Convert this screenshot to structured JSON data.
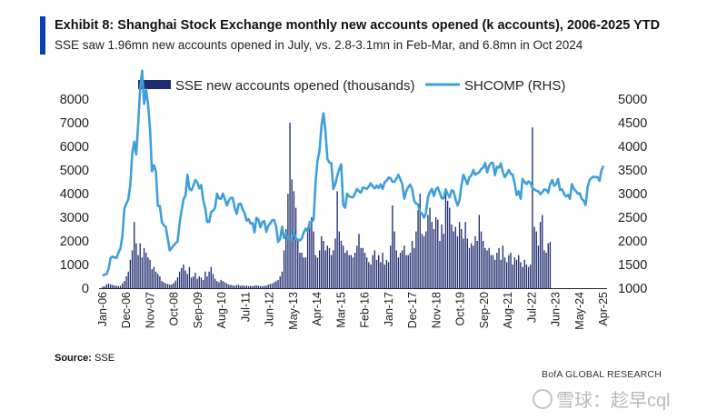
{
  "header": {
    "title": "Exhibit 8: Shanghai Stock Exchange monthly new accounts opened (k accounts), 2006-2025 YTD",
    "subtitle": "SSE saw 1.96mn new accounts opened in July, vs. 2.8-3.1mn in Feb-Mar, and 6.8mn in Oct 2024"
  },
  "footer": {
    "source_label": "Source:",
    "source_value": "SSE",
    "research": "BofA GLOBAL RESEARCH",
    "watermark": "雪球：趁早cql"
  },
  "colors": {
    "accent": "#0a3eb5",
    "bars": "#1f2c6e",
    "line": "#3f9fdb"
  },
  "chart_data": {
    "type": "bar",
    "title": "",
    "legend": [
      "SSE new accounts opened (thousands)",
      "SHCOMP (RHS)"
    ],
    "legend_position": "top",
    "grid": false,
    "x_start": "2006-01",
    "x_end": "2025-07",
    "x_ticks": [
      "Jan-06",
      "Dec-06",
      "Nov-07",
      "Oct-08",
      "Sep-09",
      "Aug-10",
      "Jul-11",
      "Jun-12",
      "May-13",
      "Apr-14",
      "Mar-15",
      "Feb-16",
      "Jan-17",
      "Dec-17",
      "Nov-18",
      "Oct-19",
      "Sep-20",
      "Aug-21",
      "Jul-22",
      "Jun-23",
      "May-24",
      "Apr-25"
    ],
    "y_left": {
      "label": "",
      "ylim": [
        0,
        8000
      ],
      "ticks": [
        0,
        1000,
        2000,
        3000,
        4000,
        5000,
        6000,
        7000,
        8000
      ]
    },
    "y_right": {
      "label": "",
      "ylim": [
        1000,
        5000
      ],
      "ticks": [
        1000,
        1500,
        2000,
        2500,
        3000,
        3500,
        4000,
        4500,
        5000
      ]
    },
    "series": [
      {
        "name": "SSE new accounts opened (thousands)",
        "axis": "left",
        "kind": "bar",
        "values": [
          70,
          80,
          160,
          200,
          160,
          140,
          110,
          100,
          90,
          100,
          200,
          300,
          500,
          700,
          1200,
          1600,
          2800,
          1900,
          1400,
          1900,
          1300,
          1700,
          1500,
          1300,
          1200,
          800,
          900,
          700,
          600,
          500,
          300,
          250,
          200,
          180,
          150,
          160,
          220,
          320,
          460,
          700,
          850,
          1000,
          750,
          600,
          900,
          450,
          500,
          650,
          400,
          500,
          450,
          350,
          700,
          500,
          700,
          900,
          600,
          400,
          300,
          250,
          350,
          300,
          250,
          200,
          150,
          140,
          120,
          100,
          140,
          130,
          100,
          120,
          90,
          110,
          90,
          100,
          80,
          110,
          120,
          100,
          90,
          80,
          100,
          110,
          150,
          180,
          200,
          250,
          300,
          350,
          500,
          700,
          1600,
          2500,
          4000,
          7000,
          4600,
          4100,
          3400,
          2000,
          1500,
          1500,
          1300,
          1300,
          2400,
          2800,
          3000,
          2400,
          1400,
          1300,
          1600,
          2200,
          2000,
          1600,
          1800,
          1700,
          1400,
          1600,
          2100,
          4100,
          2400,
          2000,
          1800,
          1500,
          1600,
          1400,
          1400,
          1300,
          1500,
          1800,
          2300,
          1700,
          1700,
          1500,
          1300,
          1100,
          1000,
          1400,
          1600,
          1200,
          1400,
          1100,
          1500,
          1000,
          1200,
          1100,
          1800,
          3500,
          2400,
          1600,
          1300,
          1500,
          1600,
          1800,
          1400,
          1400,
          1500,
          2000,
          1700,
          2400,
          3300,
          4000,
          2300,
          2200,
          2400,
          3100,
          3400,
          2800,
          2500,
          3000,
          2900,
          2000,
          2700,
          2300,
          4000,
          3700,
          3400,
          2700,
          2400,
          2600,
          2200,
          2800,
          2500,
          2100,
          2800,
          2100,
          1700,
          1900,
          1800,
          2200,
          2000,
          3100,
          2400,
          2000,
          1700,
          1600,
          1700,
          1400,
          1400,
          1200,
          1500,
          1700,
          1200,
          1800,
          1300,
          1100,
          1400,
          1500,
          1000,
          1300,
          1200,
          1400,
          1100,
          900,
          1200,
          1000,
          900,
          1000,
          6800,
          2600,
          2400,
          1800,
          2800,
          3100,
          1600,
          1500,
          1900,
          1960
        ],
        "color": "#1f2c6e"
      },
      {
        "name": "SHCOMP (RHS)",
        "axis": "right",
        "kind": "line",
        "values": [
          1260,
          1290,
          1300,
          1410,
          1640,
          1670,
          1650,
          1640,
          1750,
          1840,
          2100,
          2680,
          2790,
          2880,
          3180,
          3850,
          4100,
          3830,
          4470,
          5220,
          5600,
          4900,
          5200,
          4900,
          4380,
          3470,
          3600,
          3470,
          2740,
          2740,
          2400,
          2330,
          2300,
          2050,
          1800,
          1850,
          1900,
          1950,
          1990,
          2370,
          2640,
          2880,
          2960,
          3400,
          3100,
          3070,
          3170,
          3290,
          3240,
          3110,
          3180,
          2870,
          2690,
          2400,
          2400,
          2610,
          2640,
          2700,
          3000,
          2900,
          2890,
          3000,
          2880,
          2750,
          2860,
          2910,
          2910,
          2690,
          2570,
          2780,
          2790,
          2670,
          2580,
          2430,
          2460,
          2370,
          2380,
          2180,
          2490,
          2450,
          2290,
          2400,
          2420,
          2190,
          2320,
          2370,
          2440,
          2440,
          2300,
          1980,
          2040,
          2300,
          2060,
          2150,
          2050,
          2020,
          2030,
          2200,
          2050,
          2030,
          2010,
          2050,
          2180,
          2260,
          2200,
          2400,
          2400,
          2450,
          3250,
          3700,
          3910,
          4440,
          4700,
          4310,
          3730,
          3660,
          3640,
          3100,
          3200,
          3380,
          3520,
          3620,
          2760,
          2700,
          3000,
          2940,
          2930,
          2920,
          3000,
          3100,
          3050,
          3020,
          3130,
          3120,
          3100,
          3150,
          3220,
          3150,
          3110,
          3170,
          3120,
          3200,
          3100,
          3240,
          3270,
          3340,
          3330,
          3250,
          3250,
          3320,
          3400,
          3300,
          3200,
          2890,
          3050,
          3140,
          3190,
          3100,
          2850,
          2790,
          2770,
          2600,
          2580,
          2490,
          2590,
          2930,
          3030,
          3100,
          2950,
          3090,
          3130,
          3020,
          2900,
          2900,
          3090,
          2990,
          2920,
          3070,
          3050,
          2880,
          2750,
          2860,
          3180,
          3400,
          3300,
          3200,
          3350,
          3380,
          3500,
          3400,
          3430,
          3450,
          3520,
          3550,
          3650,
          3450,
          3590,
          3650,
          3650,
          3390,
          3570,
          3550,
          3640,
          3450,
          3350,
          3420,
          3500,
          3420,
          3400,
          3210,
          2970,
          3050,
          2890,
          3310,
          3250,
          3200,
          3260,
          3230,
          3120,
          3090,
          3060,
          3050,
          2990,
          3030,
          3090,
          3080,
          3020,
          3200,
          3290,
          3170,
          3200,
          3310,
          3080,
          3090,
          3000,
          2940,
          2970,
          2890,
          3200,
          3100,
          3060,
          3000,
          3010,
          2890,
          2850,
          2760,
          3140,
          3290,
          3330,
          3360,
          3350,
          3350,
          3270,
          3490,
          3590
        ],
        "color": "#3f9fdb"
      }
    ]
  }
}
